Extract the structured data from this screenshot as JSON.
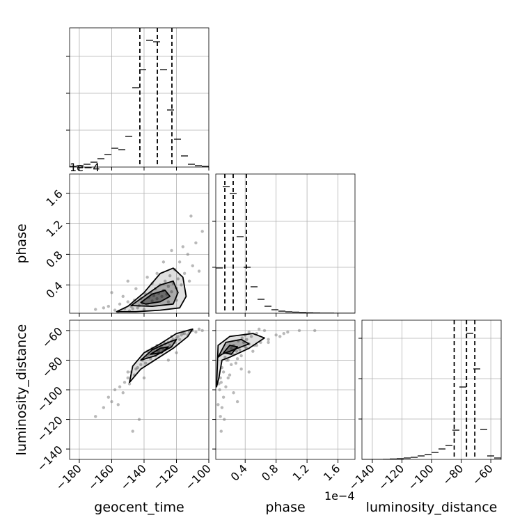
{
  "chart_data": [
    {
      "type": "histogram",
      "color": "#000000",
      "bins": [
        -186,
        -181.7,
        -177.4,
        -173.1,
        -168.8,
        -164.5,
        -160.2,
        -155.9,
        -151.6,
        -147.3,
        -143,
        -138.7,
        -134.4,
        -130.1,
        -125.8,
        -121.5,
        -117.2,
        -112.9,
        -108.6,
        -104.3,
        -100
      ],
      "counts": [
        5,
        10,
        20,
        35,
        60,
        90,
        135,
        125,
        220,
        570,
        700,
        910,
        900,
        700,
        410,
        200,
        80,
        20,
        10,
        5
      ],
      "quantiles": [
        -142.6,
        -131.8,
        -122.8
      ],
      "xlim": [
        -186,
        -100
      ],
      "xticks": [
        -180,
        -160,
        -140,
        -120,
        -100
      ],
      "ylim": [
        0,
        1000
      ],
      "yticks": [
        265,
        530,
        795
      ],
      "grid": true
    },
    {
      "type": "scatter",
      "ylabel": "phase",
      "y_offset_label": "1e−4",
      "point_color": "#808080",
      "line_color": "#000000",
      "x": [
        -170,
        -165,
        -162,
        -158,
        -155,
        -152,
        -150,
        -148,
        -146,
        -144,
        -142,
        -141,
        -139,
        -138,
        -137,
        -136,
        -135,
        -134,
        -133,
        -132,
        -131,
        -130,
        -129,
        -128,
        -127,
        -126,
        -125,
        -124,
        -123,
        -122,
        -121,
        -120,
        -119,
        -118,
        -117,
        -115,
        -113,
        -112,
        -110,
        -108,
        -106,
        -104,
        -160,
        -156,
        -153,
        -149,
        -145,
        -140,
        -147,
        -143,
        -132,
        -128,
        -125,
        -120,
        -135,
        -150,
        -116,
        -111,
        -123,
        -138
      ],
      "y": [
        0.08,
        0.1,
        0.12,
        0.07,
        0.15,
        0.09,
        0.18,
        0.12,
        0.2,
        0.1,
        0.22,
        0.16,
        0.28,
        0.14,
        0.24,
        0.3,
        0.19,
        0.26,
        0.35,
        0.22,
        0.29,
        0.4,
        0.25,
        0.33,
        0.45,
        0.28,
        0.38,
        0.52,
        0.31,
        0.42,
        0.6,
        0.36,
        0.48,
        0.7,
        0.4,
        0.55,
        0.8,
        0.45,
        0.65,
        0.95,
        0.58,
        1.1,
        0.3,
        0.05,
        0.25,
        0.06,
        0.35,
        0.08,
        0.09,
        0.13,
        0.55,
        0.7,
        0.18,
        0.2,
        0.42,
        0.45,
        0.9,
        1.3,
        0.85,
        0.5
      ],
      "contours": [
        {
          "x": [
            -157,
            -150,
            -140,
            -130,
            -122,
            -116,
            -114,
            -118,
            -130,
            -145
          ],
          "y": [
            0.05,
            0.12,
            0.3,
            0.55,
            0.62,
            0.5,
            0.25,
            0.1,
            0.07,
            0.05
          ]
        },
        {
          "x": [
            -148,
            -140,
            -130,
            -122,
            -119,
            -122,
            -135
          ],
          "y": [
            0.13,
            0.25,
            0.4,
            0.45,
            0.3,
            0.15,
            0.12
          ]
        },
        {
          "x": [
            -142,
            -135,
            -127,
            -124,
            -130,
            -139
          ],
          "y": [
            0.17,
            0.28,
            0.33,
            0.25,
            0.18,
            0.15
          ]
        }
      ],
      "xlim": [
        -186,
        -100
      ],
      "xticks": [
        -180,
        -160,
        -140,
        -120,
        -100
      ],
      "ylim": [
        0.03,
        1.85
      ],
      "yticks": [
        0.4,
        0.8,
        1.2,
        1.6
      ],
      "grid": true
    },
    {
      "type": "histogram",
      "color": "#000000",
      "bins": [
        0.02,
        0.11,
        0.2,
        0.29,
        0.38,
        0.47,
        0.56,
        0.65,
        0.74,
        0.83,
        0.92,
        1.01,
        1.1,
        1.19,
        1.28,
        1.37,
        1.46,
        1.55,
        1.64,
        1.73,
        1.82
      ],
      "counts": [
        325,
        910,
        860,
        550,
        330,
        190,
        100,
        50,
        25,
        15,
        10,
        8,
        5,
        3,
        2,
        1,
        1,
        0,
        0,
        0
      ],
      "quantiles": [
        0.137,
        0.245,
        0.416
      ],
      "xlim": [
        0.02,
        1.82
      ],
      "xticks": [
        0.4,
        0.8,
        1.2,
        1.6
      ],
      "ylim": [
        0,
        1000
      ],
      "yticks": [
        330,
        660
      ],
      "grid": true
    },
    {
      "type": "scatter",
      "xlabel": "geocent_time",
      "ylabel": "luminosity_distance",
      "point_color": "#808080",
      "line_color": "#000000",
      "x": [
        -170,
        -165,
        -162,
        -158,
        -155,
        -152,
        -150,
        -148,
        -146,
        -144,
        -142,
        -141,
        -139,
        -138,
        -137,
        -136,
        -135,
        -134,
        -133,
        -132,
        -131,
        -130,
        -129,
        -128,
        -127,
        -126,
        -125,
        -124,
        -123,
        -122,
        -121,
        -120,
        -119,
        -118,
        -117,
        -115,
        -113,
        -112,
        -110,
        -108,
        -106,
        -104,
        -160,
        -156,
        -153,
        -149,
        -145,
        -140,
        -147,
        -143,
        -132,
        -128,
        -125,
        -120,
        -135,
        -150,
        -116,
        -111,
        -123,
        -138
      ],
      "y": [
        -118,
        -112,
        -105,
        -100,
        -98,
        -95,
        -92,
        -88,
        -90,
        -85,
        -83,
        -80,
        -82,
        -78,
        -76,
        -79,
        -75,
        -73,
        -77,
        -72,
        -74,
        -71,
        -70,
        -73,
        -69,
        -72,
        -68,
        -70,
        -67,
        -66,
        -68,
        -65,
        -64,
        -66,
        -63,
        -62,
        -63,
        -61,
        -60,
        -61,
        -59,
        -60,
        -108,
        -110,
        -102,
        -96,
        -86,
        -92,
        -128,
        -120,
        -70,
        -68,
        -80,
        -75,
        -72,
        -88,
        -62,
        -60,
        -64,
        -74
      ],
      "contours": [
        {
          "x": [
            -149,
            -147,
            -140,
            -130,
            -120,
            -110,
            -113,
            -122,
            -132,
            -142
          ],
          "y": [
            -95,
            -84,
            -75,
            -69,
            -62,
            -59,
            -64,
            -72,
            -79,
            -86
          ]
        },
        {
          "x": [
            -142,
            -135,
            -125,
            -120,
            -123,
            -133
          ],
          "y": [
            -80,
            -73,
            -68,
            -66,
            -71,
            -77
          ]
        },
        {
          "x": [
            -136,
            -130,
            -125,
            -129
          ],
          "y": [
            -76,
            -72,
            -71,
            -75
          ]
        }
      ],
      "xlim": [
        -186,
        -100
      ],
      "xticks": [
        {
          "value": -180,
          "label": "−180"
        },
        {
          "value": -160,
          "label": "−160"
        },
        {
          "value": -140,
          "label": "−140"
        },
        {
          "value": -120,
          "label": "−120"
        },
        {
          "value": -100,
          "label": "−100"
        }
      ],
      "ylim": [
        -147,
        -53
      ],
      "yticks": [
        {
          "value": -140,
          "label": "−140"
        },
        {
          "value": -120,
          "label": "−120"
        },
        {
          "value": -100,
          "label": "−100"
        },
        {
          "value": -80,
          "label": "−80"
        },
        {
          "value": -60,
          "label": "−60"
        }
      ],
      "grid": true
    },
    {
      "type": "scatter",
      "xlabel": "phase",
      "x_offset_label": "1e−4",
      "point_color": "#808080",
      "line_color": "#000000",
      "x": [
        0.08,
        0.1,
        0.12,
        0.07,
        0.15,
        0.09,
        0.18,
        0.12,
        0.2,
        0.1,
        0.22,
        0.16,
        0.28,
        0.14,
        0.24,
        0.3,
        0.19,
        0.26,
        0.35,
        0.22,
        0.29,
        0.4,
        0.25,
        0.33,
        0.45,
        0.28,
        0.38,
        0.52,
        0.31,
        0.42,
        0.6,
        0.36,
        0.48,
        0.7,
        0.4,
        0.55,
        0.8,
        0.45,
        0.65,
        0.95,
        0.58,
        1.1,
        0.3,
        0.05,
        0.25,
        0.06,
        0.35,
        0.08,
        0.09,
        0.13,
        0.55,
        0.7,
        0.18,
        0.2,
        0.42,
        0.45,
        0.9,
        1.3,
        0.85,
        0.5
      ],
      "y": [
        -118,
        -112,
        -105,
        -100,
        -98,
        -95,
        -92,
        -88,
        -90,
        -85,
        -83,
        -80,
        -82,
        -78,
        -76,
        -79,
        -75,
        -73,
        -77,
        -72,
        -74,
        -71,
        -70,
        -73,
        -69,
        -72,
        -68,
        -70,
        -67,
        -66,
        -68,
        -65,
        -64,
        -66,
        -63,
        -62,
        -63,
        -61,
        -60,
        -61,
        -59,
        -60,
        -108,
        -110,
        -102,
        -96,
        -86,
        -92,
        -128,
        -120,
        -70,
        -68,
        -80,
        -75,
        -72,
        -88,
        -62,
        -60,
        -64,
        -74
      ],
      "contours": [
        {
          "x": [
            0.03,
            0.05,
            0.2,
            0.5,
            0.65,
            0.45,
            0.2,
            0.1,
            0.06
          ],
          "y": [
            -98,
            -70,
            -64,
            -62,
            -65,
            -72,
            -78,
            -80,
            -92
          ]
        },
        {
          "x": [
            0.05,
            0.15,
            0.35,
            0.45,
            0.25,
            0.1
          ],
          "y": [
            -78,
            -68,
            -66,
            -69,
            -73,
            -76
          ]
        },
        {
          "x": [
            0.12,
            0.2,
            0.3,
            0.22
          ],
          "y": [
            -75,
            -70,
            -71,
            -76
          ]
        }
      ],
      "xlim": [
        0.02,
        1.82
      ],
      "xticks": [
        0.4,
        0.8,
        1.2,
        1.6
      ],
      "ylim": [
        -147,
        -53
      ],
      "yticks": [
        -140,
        -120,
        -100,
        -80,
        -60
      ],
      "grid": true
    },
    {
      "type": "histogram",
      "color": "#000000",
      "xlabel": "luminosity_distance",
      "bins": [
        -147,
        -142.3,
        -137.6,
        -132.9,
        -128.2,
        -123.5,
        -118.8,
        -114.1,
        -109.4,
        -104.7,
        -100,
        -95.3,
        -90.6,
        -85.9,
        -81.2,
        -76.5,
        -71.8,
        -67.1,
        -62.4,
        -57.7,
        -53
      ],
      "counts": [
        0,
        0,
        0,
        1,
        3,
        5,
        10,
        15,
        25,
        35,
        50,
        75,
        100,
        210,
        520,
        905,
        650,
        215,
        25,
        10
      ],
      "quantiles": [
        -84.7,
        -76.4,
        -70.8
      ],
      "xlim": [
        -147,
        -53
      ],
      "xticks": [
        {
          "value": -140,
          "label": "−140"
        },
        {
          "value": -120,
          "label": "−120"
        },
        {
          "value": -100,
          "label": "−100"
        },
        {
          "value": -80,
          "label": "−80"
        },
        {
          "value": -60,
          "label": "−60"
        }
      ],
      "ylim": [
        0,
        1000
      ],
      "yticks": [
        290,
        580,
        870
      ],
      "grid": true
    }
  ]
}
